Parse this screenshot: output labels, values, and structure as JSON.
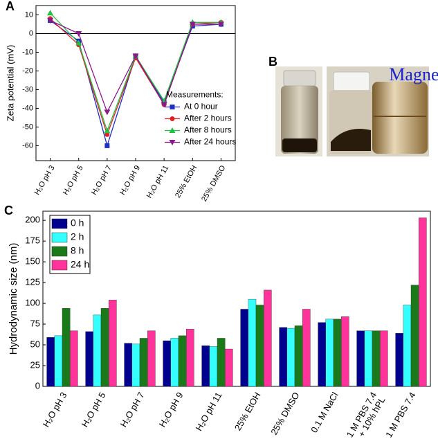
{
  "chart_data": [
    {
      "type": "line",
      "panel_label": "A",
      "y_label": "Zeta potential (mV)",
      "categories": [
        "H₂O pH 3",
        "H₂O pH 5",
        "H₂O pH 7",
        "H₂O pH 9",
        "H₂O pH 11",
        "25% EtOH",
        "25% DMSO"
      ],
      "ylim": [
        -68,
        15
      ],
      "yticks": [
        -60,
        -50,
        -40,
        -30,
        -20,
        -10,
        0,
        10
      ],
      "zero_line": true,
      "legend_title": "Measurements:",
      "legend_loc": "lower right",
      "series": [
        {
          "name": "At 0 hour",
          "color": "#1f2fbf",
          "marker": "square",
          "values": [
            7,
            -4,
            -60,
            -12,
            -37,
            4,
            5
          ]
        },
        {
          "name": "After 2 hours",
          "color": "#e02020",
          "marker": "circle",
          "values": [
            8,
            -6,
            -54,
            -13,
            -38,
            5,
            6
          ]
        },
        {
          "name": "After 8 hours",
          "color": "#20c040",
          "marker": "triangle-up",
          "values": [
            11,
            -5,
            -52,
            -12,
            -36,
            6,
            6
          ]
        },
        {
          "name": "After 24 hours",
          "color": "#8a1a8a",
          "marker": "triangle-down",
          "values": [
            7,
            0,
            -42,
            -12,
            -38,
            5,
            5
          ]
        }
      ]
    },
    {
      "type": "bar",
      "panel_label": "C",
      "y_label": "Hydrodynamic size (nm)",
      "categories": [
        "H₂O pH 3",
        "H₂O pH 5",
        "H₂O pH 7",
        "H₂O pH 9",
        "H₂O pH 11",
        "25% EtOH",
        "25% DMSO",
        "0.1 M NaCl",
        "1 M PBS 7.4\n+ 10% hPL",
        "1 M PBS 7.4"
      ],
      "ylim": [
        0,
        211
      ],
      "yticks": [
        0,
        25,
        50,
        75,
        100,
        125,
        150,
        175,
        200
      ],
      "legend_loc": "upper left",
      "series": [
        {
          "name": "0 h",
          "color": "#00008f",
          "values": [
            59,
            66,
            52,
            55,
            49,
            93,
            71,
            77,
            67,
            64
          ]
        },
        {
          "name": "2 h",
          "color": "#33ffff",
          "values": [
            61,
            86,
            51,
            58,
            48,
            105,
            70,
            81,
            67,
            98
          ]
        },
        {
          "name": "8 h",
          "color": "#1a7a1a",
          "values": [
            94,
            94,
            58,
            61,
            58,
            98,
            73,
            81,
            67,
            122
          ]
        },
        {
          "name": "24 h",
          "color": "#ff3399",
          "values": [
            67,
            104,
            67,
            69,
            45,
            116,
            93,
            84,
            67,
            203
          ]
        }
      ]
    }
  ],
  "panel_b": {
    "panel_label": "B",
    "magnet_text": "Magnet"
  }
}
